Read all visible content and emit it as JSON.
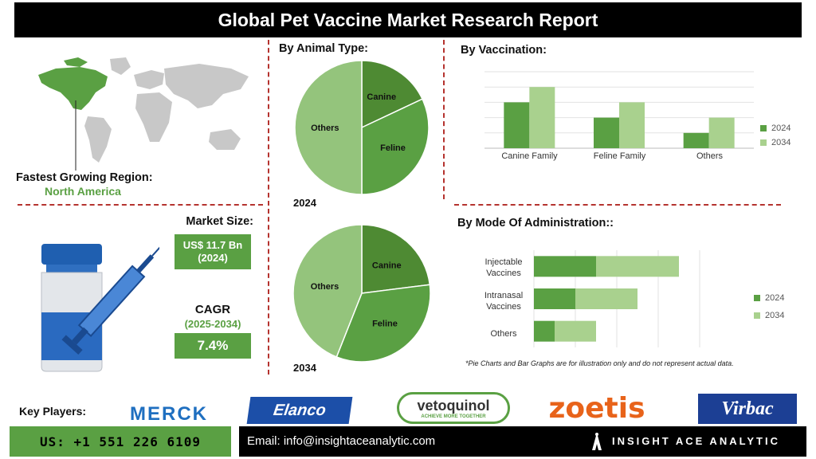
{
  "title": "Global Pet Vaccine Market Research Report",
  "region": {
    "label": "Fastest Growing Region:",
    "value": "North America"
  },
  "market": {
    "size_label": "Market Size:",
    "size_value": "US$ 11.7 Bn",
    "size_year": "(2024)",
    "cagr_label": "CAGR",
    "cagr_years": "(2025-2034)",
    "cagr_value": "7.4%"
  },
  "sections": {
    "animal_type": "By Animal Type:",
    "vaccination": "By Vaccination:",
    "mode": "By Mode Of Administration::",
    "note": "*Pie Charts and Bar Graphs are for illustration only and do not represent actual data.",
    "pie_year_1": "2024",
    "pie_year_2": "2034"
  },
  "colors": {
    "dark_green": "#4e8a33",
    "mid_green": "#5aa043",
    "light_green": "#94c47c",
    "lighter_green": "#a9d18e",
    "red_dash": "#b5332f"
  },
  "chart_data": [
    {
      "type": "pie",
      "year": "2024",
      "labels": [
        "Canine",
        "Feline",
        "Others"
      ],
      "values": [
        18,
        32,
        50
      ]
    },
    {
      "type": "pie",
      "year": "2034",
      "labels": [
        "Canine",
        "Feline",
        "Others"
      ],
      "values": [
        23,
        33,
        44
      ]
    },
    {
      "type": "bar",
      "categories": [
        "Canine Family",
        "Feline Family",
        "Others"
      ],
      "series": [
        {
          "name": "2024",
          "values": [
            3,
            2,
            1
          ]
        },
        {
          "name": "2034",
          "values": [
            4,
            3,
            2
          ]
        }
      ],
      "ylim": [
        0,
        5
      ],
      "grid": true,
      "legend": "right"
    },
    {
      "type": "bar",
      "orientation": "horizontal",
      "stacked": true,
      "categories": [
        "Injectable Vaccines",
        "Intranasal Vaccines",
        "Others"
      ],
      "series": [
        {
          "name": "2024",
          "values": [
            3,
            2,
            1
          ]
        },
        {
          "name": "2034",
          "values": [
            4,
            3,
            2
          ]
        }
      ],
      "xlim": [
        0,
        8
      ],
      "grid": true,
      "legend": "right"
    }
  ],
  "key_players": {
    "label": "Key Players:",
    "logos": [
      "MERCK",
      "Elanco",
      "vetoquinol",
      "ACHIEVE MORE TOGETHER",
      "zoetis",
      "Virbac"
    ]
  },
  "footer": {
    "phone": "US: +1 551 226 6109",
    "email": "Email: info@insightaceanalytic.com",
    "brand": "INSIGHT ACE ANALYTIC"
  }
}
